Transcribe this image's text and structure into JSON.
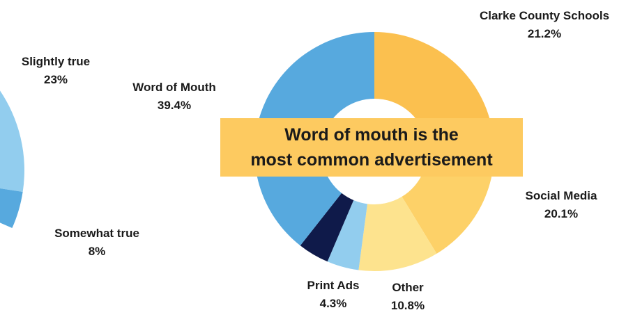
{
  "chart_data": [
    {
      "type": "pie",
      "partial": true,
      "slices": [
        {
          "label": "Slightly true",
          "value": 23,
          "display": "23%",
          "color": "#92cdee"
        },
        {
          "label": "Somewhat true",
          "value": 8,
          "display": "8%",
          "color": "#57a9de"
        }
      ]
    },
    {
      "type": "pie",
      "style": "donut",
      "slices": [
        {
          "label": "Clarke County Schools",
          "value": 21.2,
          "display": "21.2%",
          "color": "#fbc04f"
        },
        {
          "label": "Social Media",
          "value": 20.1,
          "display": "20.1%",
          "color": "#fdd168"
        },
        {
          "label": "Other",
          "value": 10.8,
          "display": "10.8%",
          "color": "#fde38e"
        },
        {
          "label": "Print Ads",
          "value": 4.3,
          "display": "4.3%",
          "color": "#92cdee"
        },
        {
          "label": "",
          "value": 4.2,
          "display": "",
          "color": "#0f1a4a"
        },
        {
          "label": "Word of Mouth",
          "value": 39.4,
          "display": "39.4%",
          "color": "#57a9de"
        }
      ]
    }
  ],
  "banner": {
    "line1": "Word of mouth is the",
    "line2": "most common advertisement"
  }
}
